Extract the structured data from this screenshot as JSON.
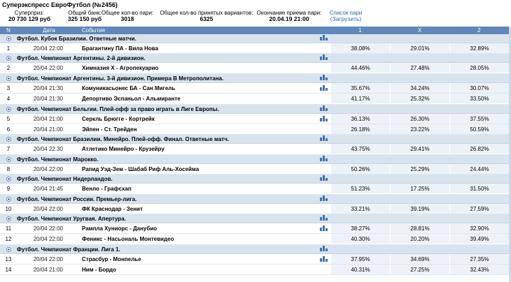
{
  "title": "Суперэкспресс ЕвроФутбол (№2456)",
  "summary": [
    {
      "label": "Суперприз:",
      "value": "20 730 129 руб"
    },
    {
      "label": "Общий банк:",
      "value": "325 150 руб"
    },
    {
      "label": "Общее кол-во пари:",
      "value": "3018"
    },
    {
      "label": "Общее кол-во принятых вариантов:",
      "value": "6325"
    },
    {
      "label": "Окончание приема пари:",
      "value": "20.04.19 21:00"
    },
    {
      "label": "Список пари",
      "value": "(Загрузить)"
    }
  ],
  "columns": {
    "n": "N",
    "date": "Дата",
    "event": "Событие",
    "p1": "1",
    "px": "X",
    "p2": "2"
  },
  "groups": [
    {
      "title": "Футбол. Кубок Бразилии. Ответные матчи.",
      "rows": [
        {
          "n": "1",
          "date": "20/04 22:00",
          "event": "Брагантину ПА - Вила Нова",
          "p1": "38.08%",
          "px": "29.01%",
          "p2": "32.89%"
        }
      ]
    },
    {
      "title": "Футбол. Чемпионат Аргентины. 2-й дивизион.",
      "rows": [
        {
          "n": "2",
          "date": "20/04 22:00",
          "event": "Химназия Х - Агропекуарио",
          "p1": "44.46%",
          "px": "27.48%",
          "p2": "28.05%"
        }
      ]
    },
    {
      "title": "Футбол. Чемпионат Аргентины. 3-й дивизион. Примера В Метрополитана.",
      "rows": [
        {
          "n": "3",
          "date": "20/04 21:30",
          "event": "Комуникасьонес БА - Сан Мигель",
          "p1": "35.67%",
          "px": "34.24%",
          "p2": "30.07%"
        },
        {
          "n": "4",
          "date": "20/04 21:30",
          "event": "Депортиво Эспаньол - Альмиранте",
          "p1": "41.17%",
          "px": "25.32%",
          "p2": "33.50%"
        }
      ]
    },
    {
      "title": "Футбол. Чемпионат Бельгии. Плей-офф за право играть в Лиге Европы.",
      "rows": [
        {
          "n": "5",
          "date": "20/04 21:00",
          "event": "Серкль Брюгге - Кортрейк",
          "p1": "36.13%",
          "px": "26.30%",
          "p2": "37.55%"
        },
        {
          "n": "6",
          "date": "20/04 21:00",
          "event": "Эйпен - Ст. Трейден",
          "p1": "26.18%",
          "px": "23.22%",
          "p2": "50.59%"
        }
      ]
    },
    {
      "title": "Футбол. Чемпионат Бразилии. Минейро. Плей-офф. Финал. Ответные матч.",
      "rows": [
        {
          "n": "7",
          "date": "20/04 22:30",
          "event": "Атлетико Минейро - Крузейру",
          "p1": "43.75%",
          "px": "29.41%",
          "p2": "26.82%"
        }
      ]
    },
    {
      "title": "Футбол. Чемпионат Марокко.",
      "rows": [
        {
          "n": "8",
          "date": "20/04 22:00",
          "event": "Рапид Уэд-Зем - Шабаб Риф Аль-Хосейма",
          "p1": "50.26%",
          "px": "25.29%",
          "p2": "24.44%"
        }
      ]
    },
    {
      "title": "Футбол. Чемпионат Нидерландов.",
      "rows": [
        {
          "n": "9",
          "date": "20/04 21:45",
          "event": "Венло - Графсхап",
          "p1": "51.23%",
          "px": "17.25%",
          "p2": "31.50%"
        }
      ]
    },
    {
      "title": "Футбол. Чемпионат России. Премьер-лига.",
      "rows": [
        {
          "n": "10",
          "date": "20/04 22:00",
          "event": "ФК Краснодар - Зенит",
          "p1": "33.21%",
          "px": "39.19%",
          "p2": "27.59%"
        }
      ]
    },
    {
      "title": "Футбол. Чемпионат Уругвая. Апертура.",
      "rows": [
        {
          "n": "11",
          "date": "20/04 22:00",
          "event": "Рампла Хуниорс - Данубио",
          "p1": "38.27%",
          "px": "28.81%",
          "p2": "32.90%"
        },
        {
          "n": "12",
          "date": "20/04 22:00",
          "event": "Феникс - Насьональ Монтевидео",
          "p1": "40.30%",
          "px": "20.20%",
          "p2": "39.49%"
        }
      ]
    },
    {
      "title": "Футбол. Чемпионат Франции. Лига 1.",
      "rows": [
        {
          "n": "13",
          "date": "20/04 22:00",
          "event": "Страсбур - Монпелье",
          "p1": "37.95%",
          "px": "34.69%",
          "p2": "27.35%"
        },
        {
          "n": "14",
          "date": "20/04 21:00",
          "event": "Ним - Бордо",
          "p1": "40.31%",
          "px": "27.25%",
          "p2": "32.43%"
        }
      ]
    }
  ]
}
